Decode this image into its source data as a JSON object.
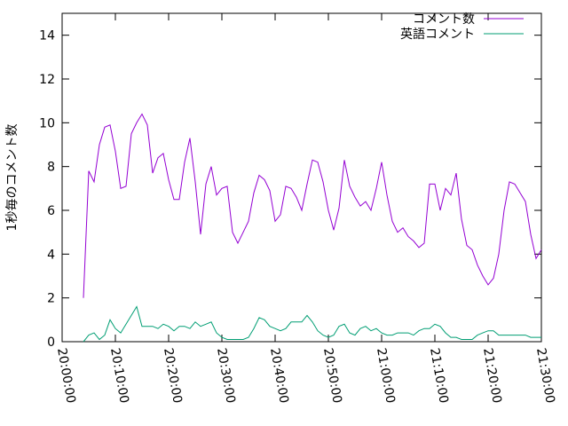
{
  "chart_data": {
    "type": "line",
    "title": "",
    "xlabel": "",
    "ylabel": "1秒毎のコメント数",
    "xlim": [
      "20:00:00",
      "21:30:00"
    ],
    "ylim": [
      0,
      15
    ],
    "xticks": [
      "20:00:00",
      "20:10:00",
      "20:20:00",
      "20:30:00",
      "20:40:00",
      "20:50:00",
      "21:00:00",
      "21:10:00",
      "21:20:00",
      "21:30:00"
    ],
    "yticks": [
      0,
      2,
      4,
      6,
      8,
      10,
      12,
      14
    ],
    "grid": false,
    "legend_position": "top-right",
    "series": [
      {
        "name": "コメント数",
        "color": "#9400d3",
        "x": [
          "20:04:00",
          "20:05:00",
          "20:06:00",
          "20:07:00",
          "20:08:00",
          "20:09:00",
          "20:10:00",
          "20:11:00",
          "20:12:00",
          "20:13:00",
          "20:14:00",
          "20:15:00",
          "20:16:00",
          "20:17:00",
          "20:18:00",
          "20:19:00",
          "20:20:00",
          "20:21:00",
          "20:22:00",
          "20:23:00",
          "20:24:00",
          "20:25:00",
          "20:26:00",
          "20:27:00",
          "20:28:00",
          "20:29:00",
          "20:30:00",
          "20:31:00",
          "20:32:00",
          "20:33:00",
          "20:34:00",
          "20:35:00",
          "20:36:00",
          "20:37:00",
          "20:38:00",
          "20:39:00",
          "20:40:00",
          "20:41:00",
          "20:42:00",
          "20:43:00",
          "20:44:00",
          "20:45:00",
          "20:46:00",
          "20:47:00",
          "20:48:00",
          "20:49:00",
          "20:50:00",
          "20:51:00",
          "20:52:00",
          "20:53:00",
          "20:54:00",
          "20:55:00",
          "20:56:00",
          "20:57:00",
          "20:58:00",
          "20:59:00",
          "21:00:00",
          "21:01:00",
          "21:02:00",
          "21:03:00",
          "21:04:00",
          "21:05:00",
          "21:06:00",
          "21:07:00",
          "21:08:00",
          "21:09:00",
          "21:10:00",
          "21:11:00",
          "21:12:00",
          "21:13:00",
          "21:14:00",
          "21:15:00",
          "21:16:00",
          "21:17:00",
          "21:18:00",
          "21:19:00",
          "21:20:00",
          "21:21:00",
          "21:22:00",
          "21:23:00",
          "21:24:00",
          "21:25:00",
          "21:26:00",
          "21:27:00",
          "21:28:00",
          "21:29:00",
          "21:30:00"
        ],
        "values": [
          2.0,
          7.8,
          7.3,
          9.0,
          9.8,
          9.9,
          8.7,
          7.0,
          7.1,
          9.5,
          10.0,
          10.4,
          9.9,
          7.7,
          8.4,
          8.6,
          7.4,
          6.5,
          6.5,
          8.2,
          9.3,
          7.3,
          4.9,
          7.2,
          8.0,
          6.7,
          7.0,
          7.1,
          5.0,
          4.5,
          5.0,
          5.5,
          6.8,
          7.6,
          7.4,
          6.9,
          5.5,
          5.8,
          7.1,
          7.0,
          6.6,
          6.0,
          7.2,
          8.3,
          8.2,
          7.3,
          6.0,
          5.1,
          6.1,
          8.3,
          7.1,
          6.6,
          6.2,
          6.4,
          6.0,
          7.0,
          8.2,
          6.7,
          5.5,
          5.0,
          5.2,
          4.8,
          4.6,
          4.3,
          4.5,
          7.2,
          7.2,
          6.0,
          7.0,
          6.7,
          7.7,
          5.6,
          4.4,
          4.2,
          3.5,
          3.0,
          2.6,
          2.9,
          4.0,
          6.0,
          7.3,
          7.2,
          6.8,
          6.4,
          4.9,
          3.8,
          4.2
        ]
      },
      {
        "name": "英語コメント",
        "color": "#009e73",
        "x": [
          "20:04:00",
          "20:05:00",
          "20:06:00",
          "20:07:00",
          "20:08:00",
          "20:09:00",
          "20:10:00",
          "20:11:00",
          "20:12:00",
          "20:13:00",
          "20:14:00",
          "20:15:00",
          "20:16:00",
          "20:17:00",
          "20:18:00",
          "20:19:00",
          "20:20:00",
          "20:21:00",
          "20:22:00",
          "20:23:00",
          "20:24:00",
          "20:25:00",
          "20:26:00",
          "20:27:00",
          "20:28:00",
          "20:29:00",
          "20:30:00",
          "20:31:00",
          "20:32:00",
          "20:33:00",
          "20:34:00",
          "20:35:00",
          "20:36:00",
          "20:37:00",
          "20:38:00",
          "20:39:00",
          "20:40:00",
          "20:41:00",
          "20:42:00",
          "20:43:00",
          "20:44:00",
          "20:45:00",
          "20:46:00",
          "20:47:00",
          "20:48:00",
          "20:49:00",
          "20:50:00",
          "20:51:00",
          "20:52:00",
          "20:53:00",
          "20:54:00",
          "20:55:00",
          "20:56:00",
          "20:57:00",
          "20:58:00",
          "20:59:00",
          "21:00:00",
          "21:01:00",
          "21:02:00",
          "21:03:00",
          "21:04:00",
          "21:05:00",
          "21:06:00",
          "21:07:00",
          "21:08:00",
          "21:09:00",
          "21:10:00",
          "21:11:00",
          "21:12:00",
          "21:13:00",
          "21:14:00",
          "21:15:00",
          "21:16:00",
          "21:17:00",
          "21:18:00",
          "21:19:00",
          "21:20:00",
          "21:21:00",
          "21:22:00",
          "21:23:00",
          "21:24:00",
          "21:25:00",
          "21:26:00",
          "21:27:00",
          "21:28:00",
          "21:29:00",
          "21:30:00"
        ],
        "values": [
          0.0,
          0.3,
          0.4,
          0.1,
          0.3,
          1.0,
          0.6,
          0.4,
          0.8,
          1.2,
          1.6,
          0.7,
          0.7,
          0.7,
          0.6,
          0.8,
          0.7,
          0.5,
          0.7,
          0.7,
          0.6,
          0.9,
          0.7,
          0.8,
          0.9,
          0.4,
          0.2,
          0.1,
          0.1,
          0.1,
          0.1,
          0.2,
          0.6,
          1.1,
          1.0,
          0.7,
          0.6,
          0.5,
          0.6,
          0.9,
          0.9,
          0.9,
          1.2,
          0.9,
          0.5,
          0.3,
          0.2,
          0.3,
          0.7,
          0.8,
          0.4,
          0.3,
          0.6,
          0.7,
          0.5,
          0.6,
          0.4,
          0.3,
          0.3,
          0.4,
          0.4,
          0.4,
          0.3,
          0.5,
          0.6,
          0.6,
          0.8,
          0.7,
          0.4,
          0.2,
          0.2,
          0.1,
          0.1,
          0.1,
          0.3,
          0.4,
          0.5,
          0.5,
          0.3,
          0.3,
          0.3,
          0.3,
          0.3,
          0.3,
          0.2,
          0.2,
          0.2
        ]
      }
    ]
  }
}
